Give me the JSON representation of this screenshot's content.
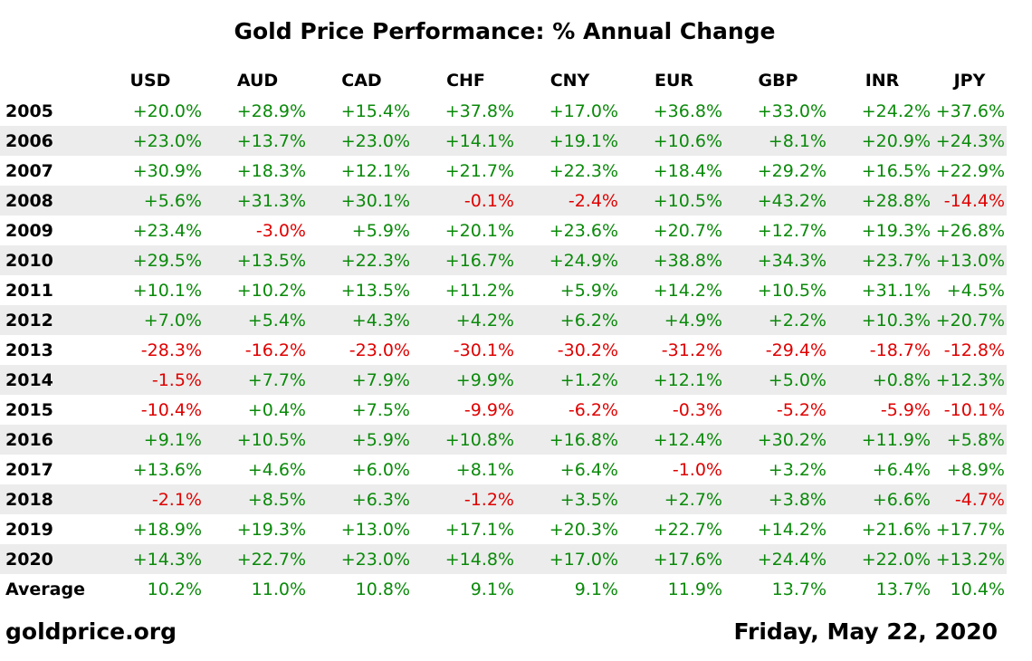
{
  "chart_data": {
    "type": "table",
    "title": "Gold Price Performance: % Annual Change",
    "columns": [
      "USD",
      "AUD",
      "CAD",
      "CHF",
      "CNY",
      "EUR",
      "GBP",
      "INR",
      "JPY"
    ],
    "rows": [
      {
        "label": "2005",
        "values": [
          "+20.0%",
          "+28.9%",
          "+15.4%",
          "+37.8%",
          "+17.0%",
          "+36.8%",
          "+33.0%",
          "+24.2%",
          "+37.6%"
        ]
      },
      {
        "label": "2006",
        "values": [
          "+23.0%",
          "+13.7%",
          "+23.0%",
          "+14.1%",
          "+19.1%",
          "+10.6%",
          "+8.1%",
          "+20.9%",
          "+24.3%"
        ]
      },
      {
        "label": "2007",
        "values": [
          "+30.9%",
          "+18.3%",
          "+12.1%",
          "+21.7%",
          "+22.3%",
          "+18.4%",
          "+29.2%",
          "+16.5%",
          "+22.9%"
        ]
      },
      {
        "label": "2008",
        "values": [
          "+5.6%",
          "+31.3%",
          "+30.1%",
          "-0.1%",
          "-2.4%",
          "+10.5%",
          "+43.2%",
          "+28.8%",
          "-14.4%"
        ]
      },
      {
        "label": "2009",
        "values": [
          "+23.4%",
          "-3.0%",
          "+5.9%",
          "+20.1%",
          "+23.6%",
          "+20.7%",
          "+12.7%",
          "+19.3%",
          "+26.8%"
        ]
      },
      {
        "label": "2010",
        "values": [
          "+29.5%",
          "+13.5%",
          "+22.3%",
          "+16.7%",
          "+24.9%",
          "+38.8%",
          "+34.3%",
          "+23.7%",
          "+13.0%"
        ]
      },
      {
        "label": "2011",
        "values": [
          "+10.1%",
          "+10.2%",
          "+13.5%",
          "+11.2%",
          "+5.9%",
          "+14.2%",
          "+10.5%",
          "+31.1%",
          "+4.5%"
        ]
      },
      {
        "label": "2012",
        "values": [
          "+7.0%",
          "+5.4%",
          "+4.3%",
          "+4.2%",
          "+6.2%",
          "+4.9%",
          "+2.2%",
          "+10.3%",
          "+20.7%"
        ]
      },
      {
        "label": "2013",
        "values": [
          "-28.3%",
          "-16.2%",
          "-23.0%",
          "-30.1%",
          "-30.2%",
          "-31.2%",
          "-29.4%",
          "-18.7%",
          "-12.8%"
        ]
      },
      {
        "label": "2014",
        "values": [
          "-1.5%",
          "+7.7%",
          "+7.9%",
          "+9.9%",
          "+1.2%",
          "+12.1%",
          "+5.0%",
          "+0.8%",
          "+12.3%"
        ]
      },
      {
        "label": "2015",
        "values": [
          "-10.4%",
          "+0.4%",
          "+7.5%",
          "-9.9%",
          "-6.2%",
          "-0.3%",
          "-5.2%",
          "-5.9%",
          "-10.1%"
        ]
      },
      {
        "label": "2016",
        "values": [
          "+9.1%",
          "+10.5%",
          "+5.9%",
          "+10.8%",
          "+16.8%",
          "+12.4%",
          "+30.2%",
          "+11.9%",
          "+5.8%"
        ]
      },
      {
        "label": "2017",
        "values": [
          "+13.6%",
          "+4.6%",
          "+6.0%",
          "+8.1%",
          "+6.4%",
          "-1.0%",
          "+3.2%",
          "+6.4%",
          "+8.9%"
        ]
      },
      {
        "label": "2018",
        "values": [
          "-2.1%",
          "+8.5%",
          "+6.3%",
          "-1.2%",
          "+3.5%",
          "+2.7%",
          "+3.8%",
          "+6.6%",
          "-4.7%"
        ]
      },
      {
        "label": "2019",
        "values": [
          "+18.9%",
          "+19.3%",
          "+13.0%",
          "+17.1%",
          "+20.3%",
          "+22.7%",
          "+14.2%",
          "+21.6%",
          "+17.7%"
        ]
      },
      {
        "label": "2020",
        "values": [
          "+14.3%",
          "+22.7%",
          "+23.0%",
          "+14.8%",
          "+17.0%",
          "+17.6%",
          "+24.4%",
          "+22.0%",
          "+13.2%"
        ]
      }
    ],
    "average": {
      "label": "Average",
      "values": [
        "10.2%",
        "11.0%",
        "10.8%",
        "9.1%",
        "9.1%",
        "11.9%",
        "13.7%",
        "13.7%",
        "10.4%"
      ]
    },
    "colors": {
      "positive": "#0a8a0a",
      "negative": "#e00000",
      "shaded_row": "#ececec"
    }
  },
  "footer": {
    "source": "goldprice.org",
    "date": "Friday, May 22, 2020"
  }
}
